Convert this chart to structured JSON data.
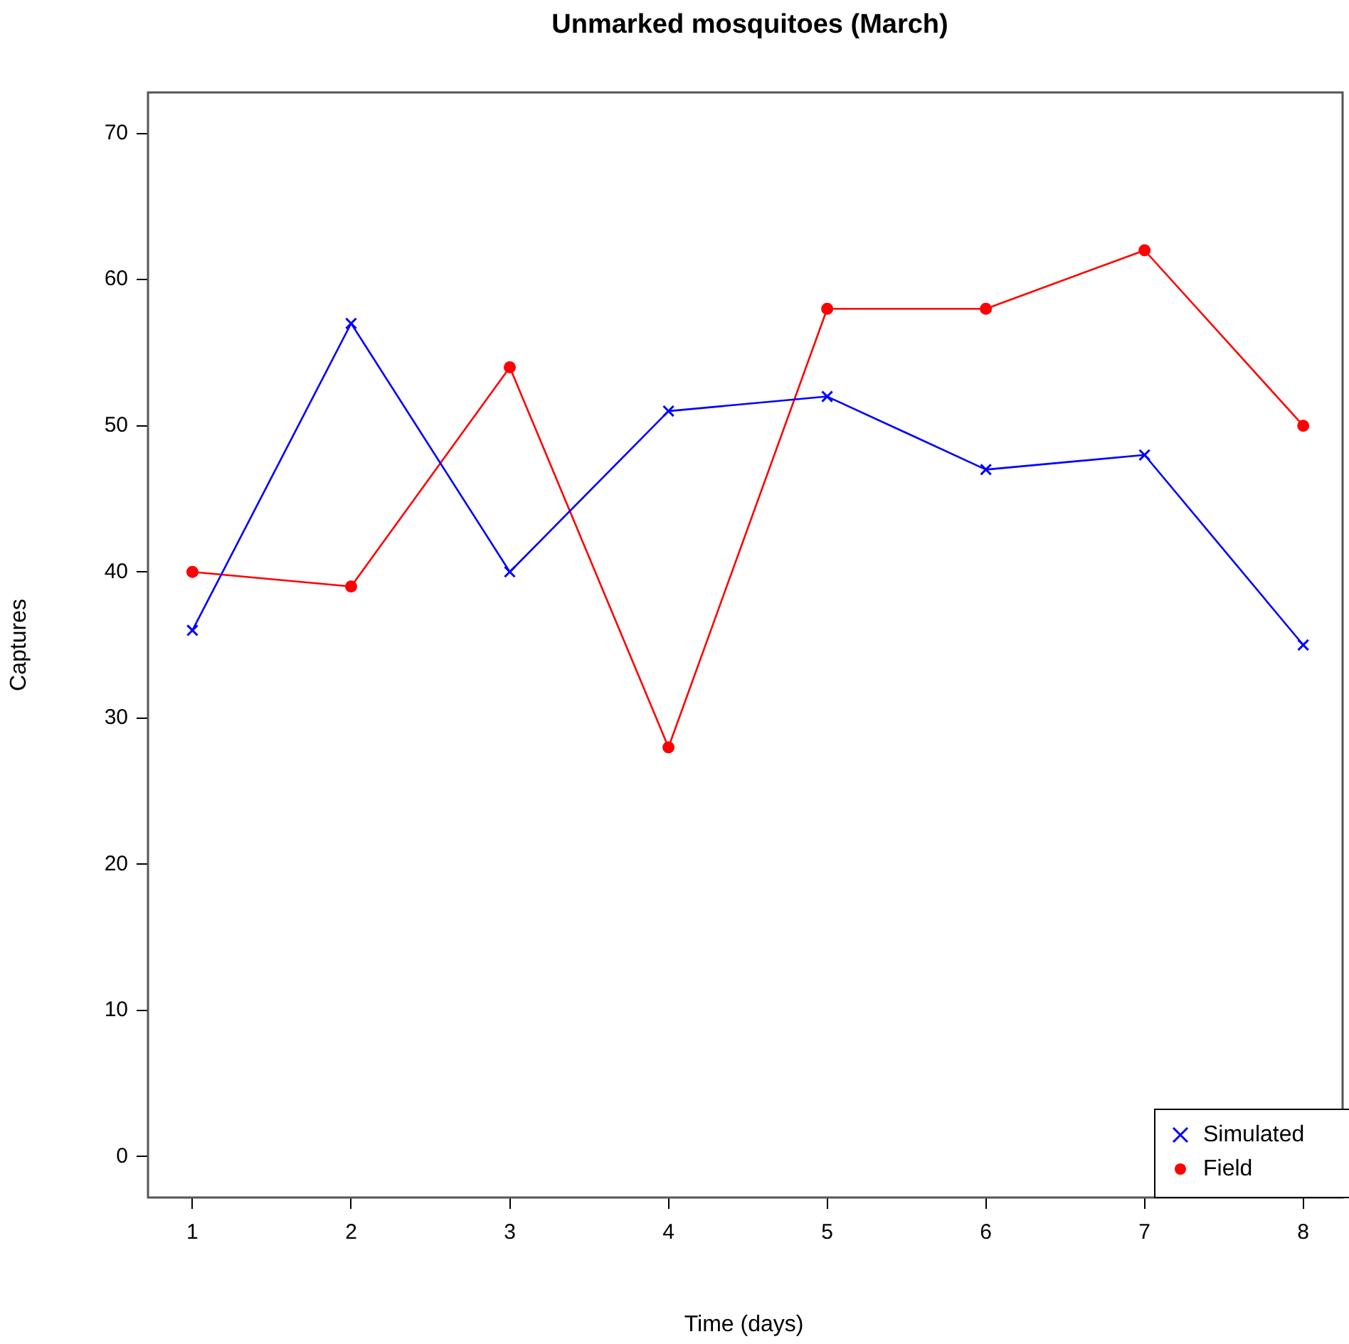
{
  "chart_data": {
    "type": "line",
    "title": "Unmarked mosquitoes (March)",
    "xlabel": "Time (days)",
    "ylabel": "Captures",
    "x": [
      1,
      2,
      3,
      4,
      5,
      6,
      7,
      8
    ],
    "series": [
      {
        "name": "Simulated",
        "color": "#0000ff",
        "marker": "cross",
        "values": [
          36,
          57,
          40,
          51,
          52,
          47,
          48,
          35
        ]
      },
      {
        "name": "Field",
        "color": "#ff0000",
        "marker": "circle",
        "values": [
          40,
          39,
          54,
          28,
          58,
          58,
          62,
          50
        ]
      }
    ],
    "xlim": [
      0.72,
      8.23
    ],
    "xticks": [
      1,
      2,
      3,
      4,
      5,
      6,
      7,
      8
    ],
    "ylim": [
      -2.8,
      72.8
    ],
    "yticks": [
      0,
      10,
      20,
      30,
      40,
      50,
      60,
      70
    ],
    "grid": false,
    "legend": "bottom right"
  }
}
